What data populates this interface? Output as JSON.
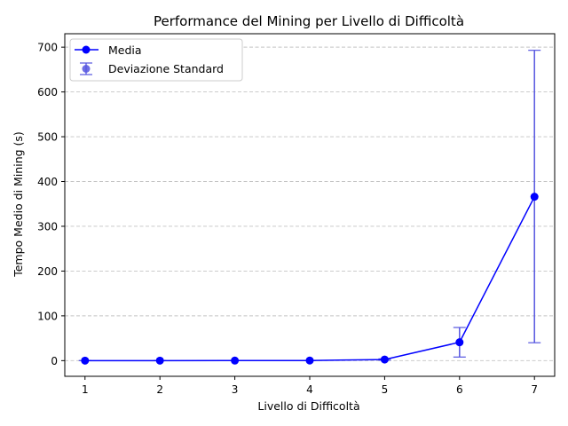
{
  "chart_data": {
    "type": "line",
    "title": "Performance del Mining per Livello di Difficoltà",
    "xlabel": "Livello di Difficoltà",
    "ylabel": "Tempo Medio di Mining (s)",
    "x": [
      1,
      2,
      3,
      4,
      5,
      6,
      7
    ],
    "xlim": [
      0.73,
      7.27
    ],
    "ylim": [
      -35,
      730
    ],
    "xticks": [
      1,
      2,
      3,
      4,
      5,
      6,
      7
    ],
    "yticks": [
      0,
      100,
      200,
      300,
      400,
      500,
      600,
      700
    ],
    "grid": "y-dashed",
    "legend_position": "top-left",
    "series": [
      {
        "name": "Media",
        "color": "#0000ff",
        "values": [
          0.01,
          0.02,
          0.08,
          0.3,
          2.5,
          41,
          366
        ],
        "error_legend_label": "Deviazione Standard",
        "error_color": "#5555e0",
        "error_lower": [
          0,
          0,
          0.02,
          0.1,
          1,
          8,
          40
        ],
        "error_upper": [
          0.02,
          0.04,
          0.15,
          0.5,
          4,
          74,
          693
        ]
      }
    ]
  }
}
